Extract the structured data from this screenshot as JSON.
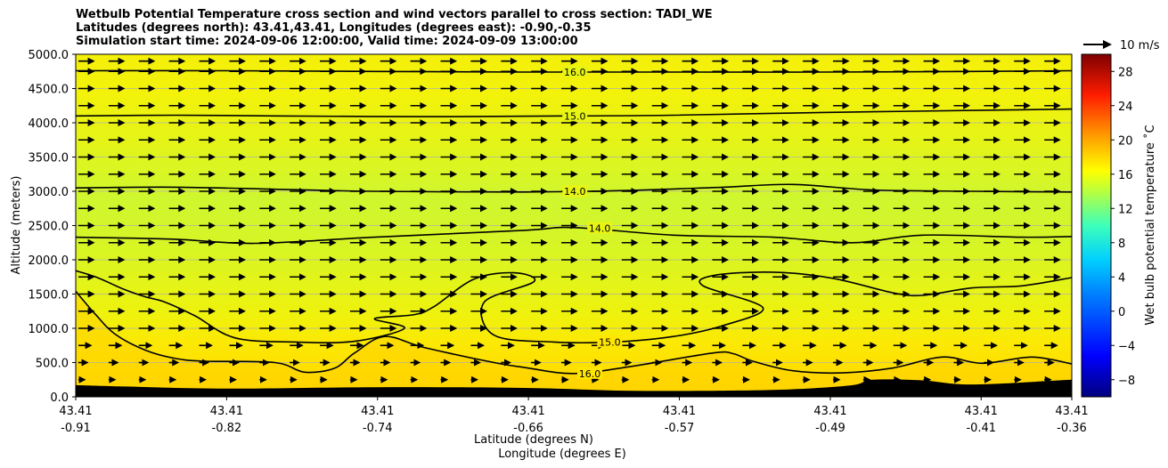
{
  "title_lines": [
    "Wetbulb Potential Temperature cross section and wind vectors parallel to cross section: TADI_WE",
    "Latitudes (degrees north): 43.41,43.41, Longitudes (degrees east): -0.90,-0.35",
    "Simulation start time: 2024-09-06 12:00:00, Valid time: 2024-09-09 13:00:00"
  ],
  "colors": {
    "upper": "#f2f20a",
    "band": "#d4f52c",
    "lower": "#ffdc00",
    "ground": "#000000",
    "contour": "#000000"
  },
  "chart_data": {
    "type": "heatmap",
    "subtype": "cross-section contour with wind vectors",
    "ylabel": "Altitude (meters)",
    "xlabel_lines": [
      "Latitude (degrees N)",
      "Longitude (degrees E)"
    ],
    "ylim": [
      0,
      5000
    ],
    "yticks": [
      "0.0",
      "500.0",
      "1000.0",
      "1500.0",
      "2000.0",
      "2500.0",
      "3000.0",
      "3500.0",
      "4000.0",
      "4500.0",
      "5000.0"
    ],
    "xticks": [
      {
        "lat": "43.41",
        "lon": "-0.91"
      },
      {
        "lat": "43.41",
        "lon": "-0.82"
      },
      {
        "lat": "43.41",
        "lon": "-0.74"
      },
      {
        "lat": "43.41",
        "lon": "-0.66"
      },
      {
        "lat": "43.41",
        "lon": "-0.57"
      },
      {
        "lat": "43.41",
        "lon": "-0.49"
      },
      {
        "lat": "43.41",
        "lon": "-0.41"
      },
      {
        "lat": "43.41",
        "lon": "-0.36"
      }
    ],
    "grid": "horizontal",
    "contours": [
      {
        "label": "16.0",
        "x": [
          0,
          0.15,
          0.3,
          0.45,
          0.6,
          0.75,
          0.9,
          1
        ],
        "y": [
          4760,
          4760,
          4750,
          4740,
          4740,
          4740,
          4750,
          4760
        ]
      },
      {
        "label": "15.0",
        "x": [
          0,
          0.1,
          0.2,
          0.35,
          0.5,
          0.6,
          0.75,
          0.9,
          1
        ],
        "y": [
          4100,
          4110,
          4100,
          4090,
          4100,
          4110,
          4150,
          4180,
          4200
        ]
      },
      {
        "label": "14.0",
        "x": [
          0,
          0.1,
          0.2,
          0.3,
          0.45,
          0.55,
          0.65,
          0.72,
          0.8,
          0.9,
          1
        ],
        "y": [
          3050,
          3060,
          3030,
          3000,
          2990,
          3010,
          3060,
          3100,
          3020,
          3000,
          2990
        ]
      },
      {
        "label": "14.0",
        "x": [
          0,
          0.1,
          0.18,
          0.3,
          0.45,
          0.5,
          0.6,
          0.7,
          0.78,
          0.85,
          0.95,
          1
        ],
        "y": [
          2330,
          2300,
          2240,
          2330,
          2430,
          2470,
          2360,
          2330,
          2250,
          2360,
          2330,
          2340
        ]
      },
      {
        "label": "15.0",
        "x": [
          0,
          0.02,
          0.05,
          0.07,
          0.09,
          0.12,
          0.16,
          0.22,
          0.28,
          0.33,
          0.3,
          0.34,
          0.36,
          0.4,
          0.44,
          0.46,
          0.41,
          0.42,
          0.48,
          0.54,
          0.6,
          0.65,
          0.69,
          0.63,
          0.64,
          0.7,
          0.76,
          0.82,
          0.85,
          0.9,
          0.95,
          1
        ],
        "y": [
          1840,
          1750,
          1560,
          1460,
          1380,
          1180,
          860,
          800,
          810,
          1000,
          1140,
          1200,
          1320,
          1720,
          1810,
          1680,
          1380,
          900,
          800,
          800,
          880,
          1040,
          1300,
          1620,
          1770,
          1820,
          1730,
          1520,
          1480,
          1590,
          1620,
          1740
        ]
      },
      {
        "label": "16.0",
        "x": [
          0,
          0.02,
          0.04,
          0.07,
          0.1,
          0.13,
          0.2,
          0.23,
          0.26,
          0.28,
          0.31,
          0.35,
          0.42,
          0.45,
          0.5,
          0.56,
          0.64,
          0.66,
          0.68,
          0.72,
          0.77,
          0.82,
          0.87,
          0.91,
          0.96,
          1
        ],
        "y": [
          1540,
          1200,
          910,
          680,
          560,
          520,
          500,
          360,
          420,
          640,
          880,
          720,
          500,
          430,
          340,
          450,
          640,
          630,
          520,
          380,
          350,
          420,
          580,
          490,
          580,
          480
        ]
      }
    ],
    "ground_profile": {
      "x": [
        0,
        0.05,
        0.15,
        0.3,
        0.45,
        0.55,
        0.65,
        0.72,
        0.78,
        0.8,
        0.85,
        0.9,
        1
      ],
      "y": [
        170,
        150,
        120,
        140,
        130,
        90,
        90,
        110,
        170,
        250,
        240,
        180,
        250
      ]
    },
    "colorbar": {
      "label": "Wet bulb potential temperature ˚C",
      "ticks": [
        "28",
        "24",
        "20",
        "16",
        "12",
        "8",
        "4",
        "0",
        "−4",
        "−8"
      ],
      "range": [
        -10,
        30
      ]
    },
    "wind_key": {
      "label": "10 m/s"
    }
  }
}
